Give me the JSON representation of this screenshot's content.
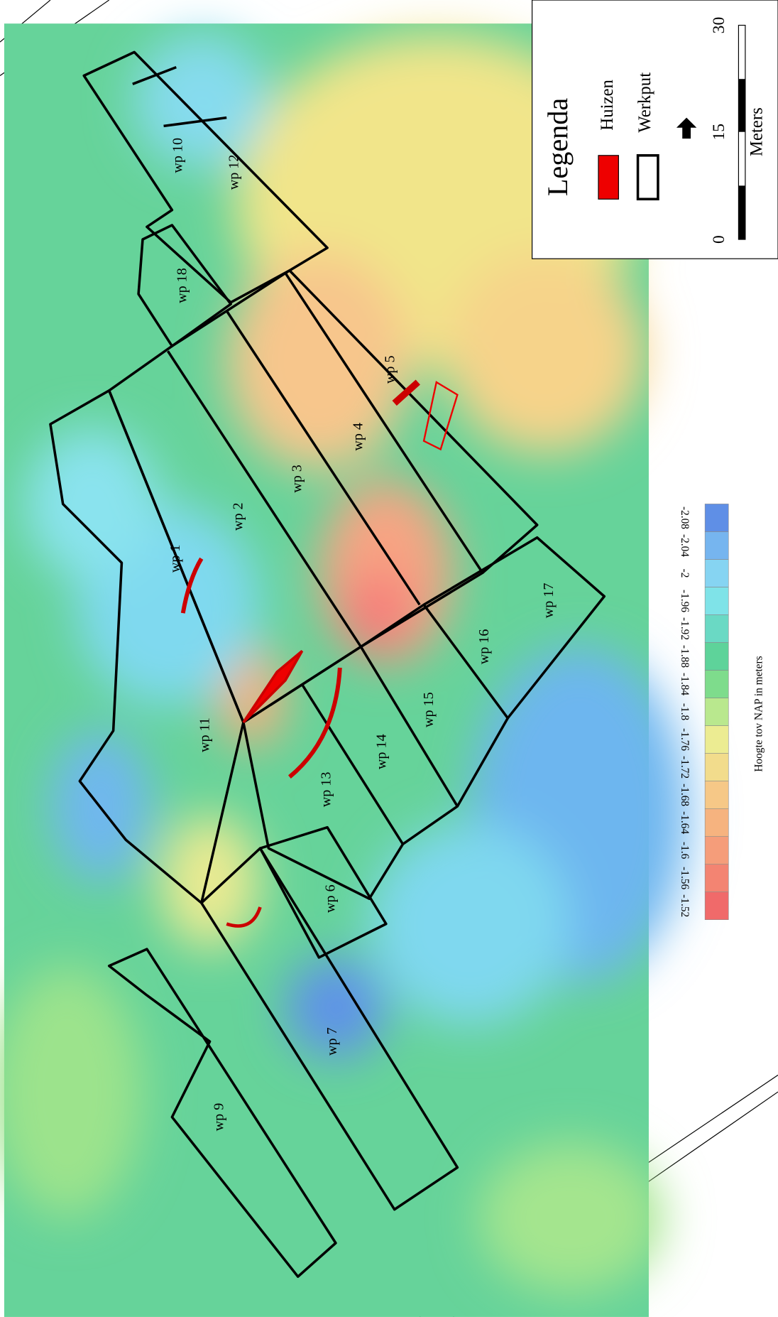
{
  "werkputten": [
    "wp 10",
    "wp 12",
    "wp 18",
    "wp 5",
    "wp 4",
    "wp 3",
    "wp 2",
    "wp 1",
    "wp 11",
    "wp 13",
    "wp 14",
    "wp 15",
    "wp 16",
    "wp 17",
    "wp 6",
    "wp 7",
    "wp 9"
  ],
  "legend": {
    "title": "Legenda",
    "items": [
      "Huizen",
      "Werkput"
    ]
  },
  "scale_bar": {
    "ticks": [
      "0",
      "15",
      "30"
    ],
    "unit": "Meters"
  },
  "colorbar": {
    "title": "Hoogte tov NAP in meters",
    "labels": [
      "-1.52",
      "-1.56",
      "-1.6",
      "-1.64",
      "-1.68",
      "-1.72",
      "-1.76",
      "-1.8",
      "-1.84",
      "-1.88",
      "-1.92",
      "-1.96",
      "-2",
      "-2.04",
      "-2.08"
    ]
  }
}
